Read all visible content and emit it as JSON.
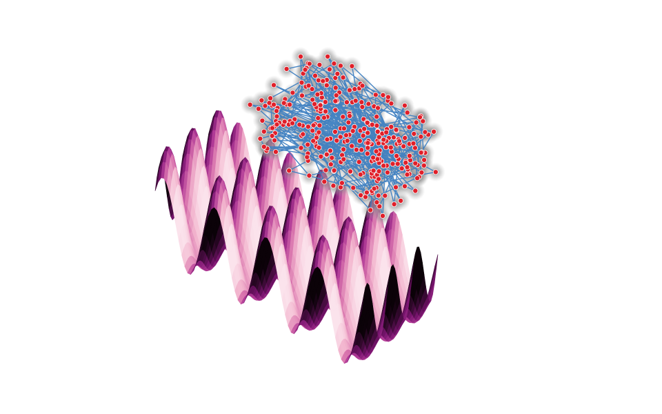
{
  "scene": {
    "background": "#ffffff",
    "surface": {
      "colormap": [
        "#0b0208",
        "#3a0a34",
        "#7a1570",
        "#b23c98",
        "#d873ad",
        "#f3b7cf",
        "#fbe3ec"
      ],
      "x_waves": 4,
      "y_waves": 3
    },
    "particles": {
      "count": 300,
      "color": "#e0202a",
      "halo_color": "#8a8a8a",
      "edge_color": "#ffffff"
    },
    "path": {
      "color": "#3e7fc1"
    }
  }
}
